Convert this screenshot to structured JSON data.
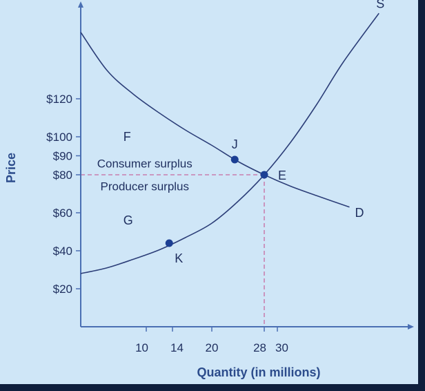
{
  "chart_data": {
    "type": "line",
    "title": "",
    "xlabel": "Quantity  (in millions)",
    "ylabel": "Price",
    "y_ticks": [
      {
        "value": 20,
        "label": "$20"
      },
      {
        "value": 40,
        "label": "$40"
      },
      {
        "value": 60,
        "label": "$60"
      },
      {
        "value": 80,
        "label": "$80"
      },
      {
        "value": 90,
        "label": "$90"
      },
      {
        "value": 100,
        "label": "$100"
      },
      {
        "value": 120,
        "label": "$120"
      }
    ],
    "x_ticks": [
      {
        "value": 10,
        "label": "10"
      },
      {
        "value": 14,
        "label": "14"
      },
      {
        "value": 20,
        "label": "20"
      },
      {
        "value": 28,
        "label": "28"
      },
      {
        "value": 30,
        "label": "30"
      }
    ],
    "series": [
      {
        "name": "D",
        "x": [
          0,
          4,
          8,
          12,
          16,
          20,
          24,
          28,
          32,
          36,
          41
        ],
        "y": [
          155,
          135,
          122.5,
          112.5,
          103.5,
          95.5,
          87,
          80,
          74,
          69,
          63
        ]
      },
      {
        "name": "S",
        "x": [
          0,
          4,
          8,
          12,
          16,
          20,
          24,
          28,
          32,
          36,
          40,
          45.5
        ],
        "y": [
          28,
          31,
          35.5,
          40.5,
          47,
          54.5,
          66,
          80,
          97,
          117,
          139,
          165
        ]
      }
    ],
    "points": [
      {
        "label": "J",
        "x": 23.5,
        "y": 88
      },
      {
        "label": "E",
        "x": 28,
        "y": 80
      },
      {
        "label": "K",
        "x": 13.5,
        "y": 44
      }
    ],
    "regions": [
      {
        "label": "F",
        "x": 6.5,
        "y": 100
      },
      {
        "label": "G",
        "x": 6.5,
        "y": 56
      },
      {
        "label": "Consumer surplus",
        "x": 2.5,
        "y": 86
      },
      {
        "label": "Producer surplus",
        "x": 3,
        "y": 74
      }
    ],
    "equilibrium": {
      "x": 28,
      "y": 80
    },
    "xlim": [
      0,
      52
    ],
    "ylim": [
      0,
      170
    ],
    "grid": false,
    "legend": "none"
  },
  "colors": {
    "background": "#cfe6f7",
    "border": "#0f1f3d",
    "axis": "#4a6fb3",
    "curve": "#2c3e78",
    "point": "#1c3f94",
    "dashed": "#c86aa0",
    "text": "#1f2f5f",
    "axis_title": "#2c4c8c"
  }
}
